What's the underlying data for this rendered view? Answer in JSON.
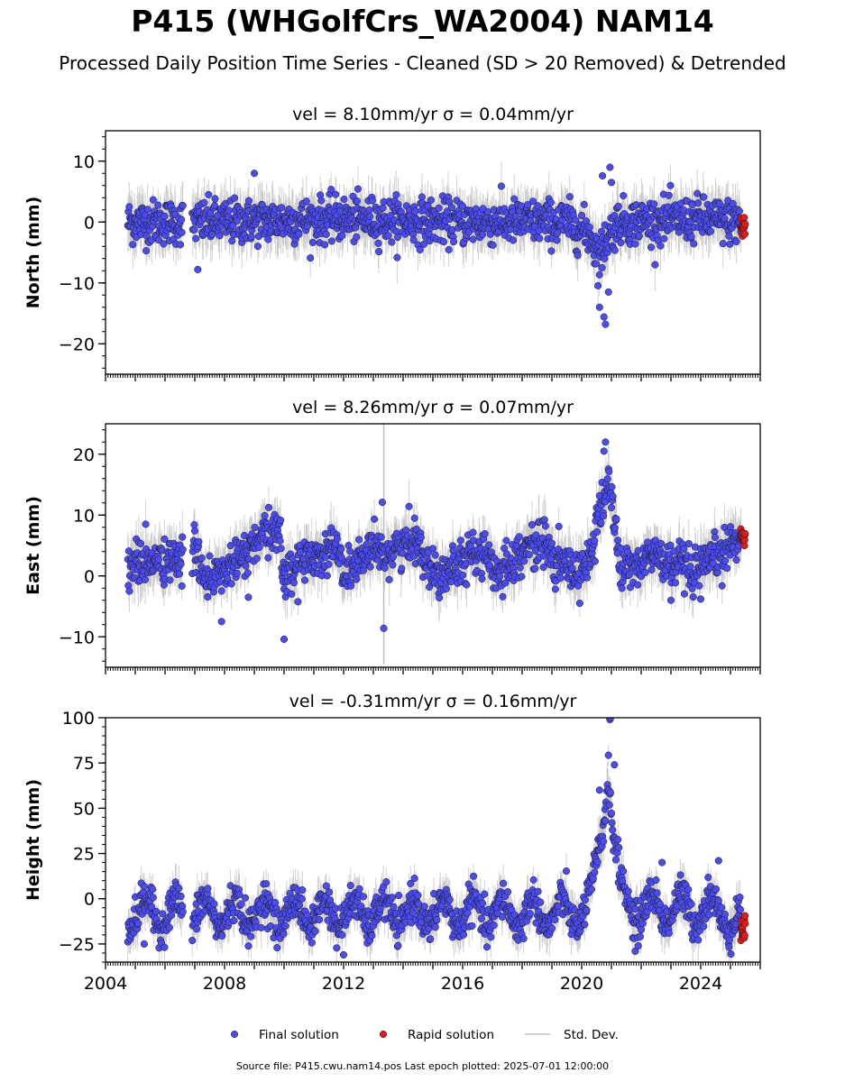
{
  "title": "P415 (WHGolfCrs_WA2004) NAM14",
  "subtitle": "Processed Daily Position Time Series - Cleaned (SD > 20 Removed) & Detrended",
  "footer": "Source file: P415.cwu.nam14.pos  Last epoch plotted: 2025-07-01 12:00:00",
  "chart_data": [
    {
      "type": "scatter",
      "title": "vel = 8.10mm/yr   σ = 0.04mm/yr",
      "ylabel": "North (mm)",
      "xlim": [
        2004,
        2026
      ],
      "ylim": [
        -25,
        15
      ],
      "yticks": [
        10,
        0,
        -10,
        -20
      ],
      "data_start": 2004.75,
      "data_end": 2025.5,
      "gaps": [
        [
          2006.6,
          2006.9
        ]
      ],
      "series": [
        {
          "name": "Final solution",
          "color": "#4b4bf0",
          "trend": [
            [
              2004.7,
              0
            ],
            [
              2008,
              0
            ],
            [
              2012,
              0.5
            ],
            [
              2016,
              0
            ],
            [
              2019.5,
              0
            ],
            [
              2020.3,
              -2
            ],
            [
              2020.6,
              -6
            ],
            [
              2020.8,
              -3
            ],
            [
              2021.2,
              0
            ],
            [
              2024,
              0.5
            ],
            [
              2025.3,
              0
            ]
          ],
          "spread": 1.8,
          "outliers": [
            [
              2007.1,
              -7.8
            ],
            [
              2009.0,
              8.0
            ],
            [
              2020.7,
              7.6
            ],
            [
              2020.95,
              9.0
            ],
            [
              2020.8,
              -16.8
            ],
            [
              2020.75,
              -15.6
            ],
            [
              2020.6,
              -14.0
            ],
            [
              2020.9,
              -11.5
            ],
            [
              2021.0,
              6.5
            ]
          ]
        },
        {
          "name": "Rapid solution",
          "color": "#e31a1c",
          "x_range": [
            2025.35,
            2025.5
          ],
          "center": -1,
          "spread": 1
        }
      ],
      "std_dev": {
        "name": "Std. Dev.",
        "color": "#bfbfbf"
      }
    },
    {
      "type": "scatter",
      "title": "vel = 8.26mm/yr   σ = 0.07mm/yr",
      "ylabel": "East (mm)",
      "xlim": [
        2004,
        2026
      ],
      "ylim": [
        -15,
        25
      ],
      "yticks": [
        20,
        10,
        0,
        -10
      ],
      "data_start": 2004.75,
      "data_end": 2025.5,
      "gaps": [
        [
          2006.6,
          2006.9
        ]
      ],
      "series": [
        {
          "name": "Final solution",
          "color": "#4b4bf0",
          "trend": [
            [
              2004.7,
              2
            ],
            [
              2006.6,
              2.5
            ],
            [
              2007.0,
              4
            ],
            [
              2007.5,
              -1
            ],
            [
              2008.3,
              2
            ],
            [
              2009.0,
              5
            ],
            [
              2009.8,
              8
            ],
            [
              2010.0,
              0
            ],
            [
              2010.8,
              3
            ],
            [
              2011.5,
              4
            ],
            [
              2011.7,
              6
            ],
            [
              2012.0,
              0
            ],
            [
              2012.6,
              3
            ],
            [
              2013.5,
              4
            ],
            [
              2014.0,
              5
            ],
            [
              2014.5,
              6
            ],
            [
              2015.0,
              0
            ],
            [
              2016.0,
              3
            ],
            [
              2016.8,
              4
            ],
            [
              2017.0,
              0
            ],
            [
              2018.0,
              4
            ],
            [
              2018.8,
              6
            ],
            [
              2019.0,
              2
            ],
            [
              2019.5,
              2
            ],
            [
              2019.7,
              0
            ],
            [
              2020.3,
              3
            ],
            [
              2020.6,
              10
            ],
            [
              2020.9,
              16
            ],
            [
              2021.1,
              9
            ],
            [
              2021.3,
              1
            ],
            [
              2022.0,
              2
            ],
            [
              2022.5,
              4
            ],
            [
              2022.7,
              2
            ],
            [
              2023.2,
              2
            ],
            [
              2023.7,
              0
            ],
            [
              2024.3,
              2
            ],
            [
              2025.0,
              5
            ],
            [
              2025.5,
              7
            ]
          ],
          "spread": 1.8,
          "outliers": [
            [
              2013.3,
              12.1
            ],
            [
              2013.35,
              -8.6
            ],
            [
              2010.0,
              -10.4
            ],
            [
              2007.9,
              -7.5
            ],
            [
              2008.8,
              -3.5
            ],
            [
              2020.8,
              22.0
            ],
            [
              2020.75,
              20.5
            ],
            [
              2023.0,
              -4
            ],
            [
              2024.0,
              -3.8
            ]
          ]
        },
        {
          "name": "Rapid solution",
          "color": "#e31a1c",
          "x_range": [
            2025.35,
            2025.5
          ],
          "center": 6.5,
          "spread": 0.7
        }
      ],
      "std_dev": {
        "name": "Std. Dev.",
        "color": "#bfbfbf"
      }
    },
    {
      "type": "scatter",
      "title": "vel = -0.31mm/yr   σ = 0.16mm/yr",
      "ylabel": "Height (mm)",
      "xlim": [
        2004,
        2026
      ],
      "ylim": [
        -35,
        100
      ],
      "yticks": [
        100,
        75,
        50,
        25,
        0,
        -25
      ],
      "xticks": [
        2004,
        2008,
        2012,
        2016,
        2020,
        2024
      ],
      "data_start": 2004.75,
      "data_end": 2025.5,
      "gaps": [
        [
          2006.6,
          2006.9
        ]
      ],
      "seasonal_amplitude": 8,
      "series": [
        {
          "name": "Final solution",
          "color": "#4b4bf0",
          "trend": [
            [
              2004.7,
              -8
            ],
            [
              2019.8,
              -8
            ],
            [
              2020.3,
              -3
            ],
            [
              2020.5,
              15
            ],
            [
              2020.7,
              40
            ],
            [
              2020.9,
              75
            ],
            [
              2021.1,
              30
            ],
            [
              2021.3,
              5
            ],
            [
              2021.6,
              -5
            ],
            [
              2024.5,
              -6
            ],
            [
              2025.4,
              -15
            ]
          ],
          "spread": 5,
          "outliers": [
            [
              2020.95,
              99
            ],
            [
              2020.97,
              100
            ],
            [
              2021.1,
              74
            ],
            [
              2020.6,
              60
            ],
            [
              2012.0,
              -31
            ],
            [
              2021.8,
              -29
            ],
            [
              2021.9,
              -26
            ],
            [
              2024.6,
              21
            ],
            [
              2022.7,
              20
            ],
            [
              2005.3,
              -25
            ]
          ]
        },
        {
          "name": "Rapid solution",
          "color": "#e31a1c",
          "x_range": [
            2025.35,
            2025.5
          ],
          "center": -16,
          "spread": 4
        }
      ],
      "std_dev": {
        "name": "Std. Dev.",
        "color": "#bfbfbf"
      }
    }
  ],
  "legend": {
    "placement": "bottom-center",
    "items": [
      {
        "label": "Final solution",
        "color": "#4b4bf0",
        "kind": "dot"
      },
      {
        "label": "Rapid solution",
        "color": "#e31a1c",
        "kind": "dot"
      },
      {
        "label": "Std. Dev.",
        "color": "#bfbfbf",
        "kind": "line"
      }
    ]
  }
}
